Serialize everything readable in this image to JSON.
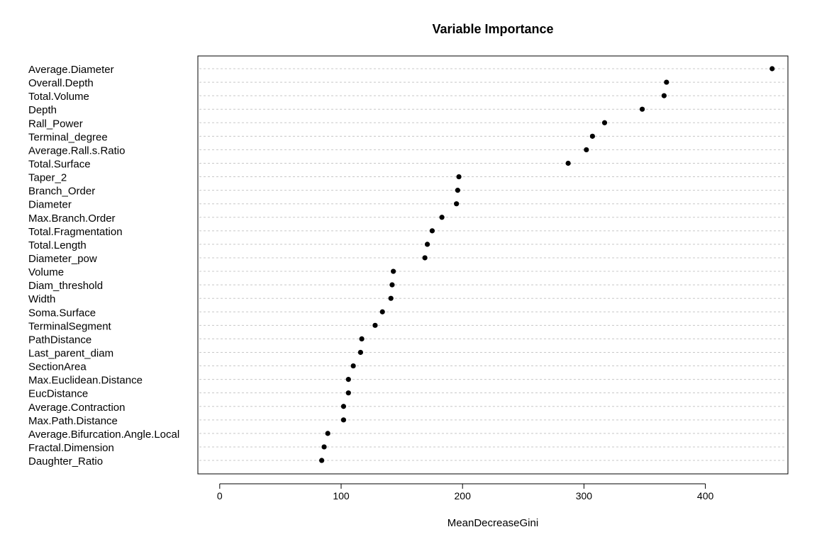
{
  "chart_data": {
    "type": "scatter",
    "title": "Variable Importance",
    "xlabel": "MeanDecreaseGini",
    "ylabel": "",
    "xlim": [
      -18,
      468
    ],
    "xticks": [
      0,
      100,
      200,
      300,
      400
    ],
    "grid": "horizontal dotted",
    "categories": [
      "Average.Diameter",
      "Overall.Depth",
      "Total.Volume",
      "Depth",
      "Rall_Power",
      "Terminal_degree",
      "Average.Rall.s.Ratio",
      "Total.Surface",
      "Taper_2",
      "Branch_Order",
      "Diameter",
      "Max.Branch.Order",
      "Total.Fragmentation",
      "Total.Length",
      "Diameter_pow",
      "Volume",
      "Diam_threshold",
      "Width",
      "Soma.Surface",
      "TerminalSegment",
      "PathDistance",
      "Last_parent_diam",
      "SectionArea",
      "Max.Euclidean.Distance",
      "EucDistance",
      "Average.Contraction",
      "Max.Path.Distance",
      "Average.Bifurcation.Angle.Local",
      "Fractal.Dimension",
      "Daughter_Ratio"
    ],
    "values": [
      455,
      368,
      366,
      348,
      317,
      307,
      302,
      287,
      197,
      196,
      195,
      183,
      175,
      171,
      169,
      143,
      142,
      141,
      134,
      128,
      117,
      116,
      110,
      106,
      106,
      102,
      102,
      89,
      86,
      84
    ]
  }
}
